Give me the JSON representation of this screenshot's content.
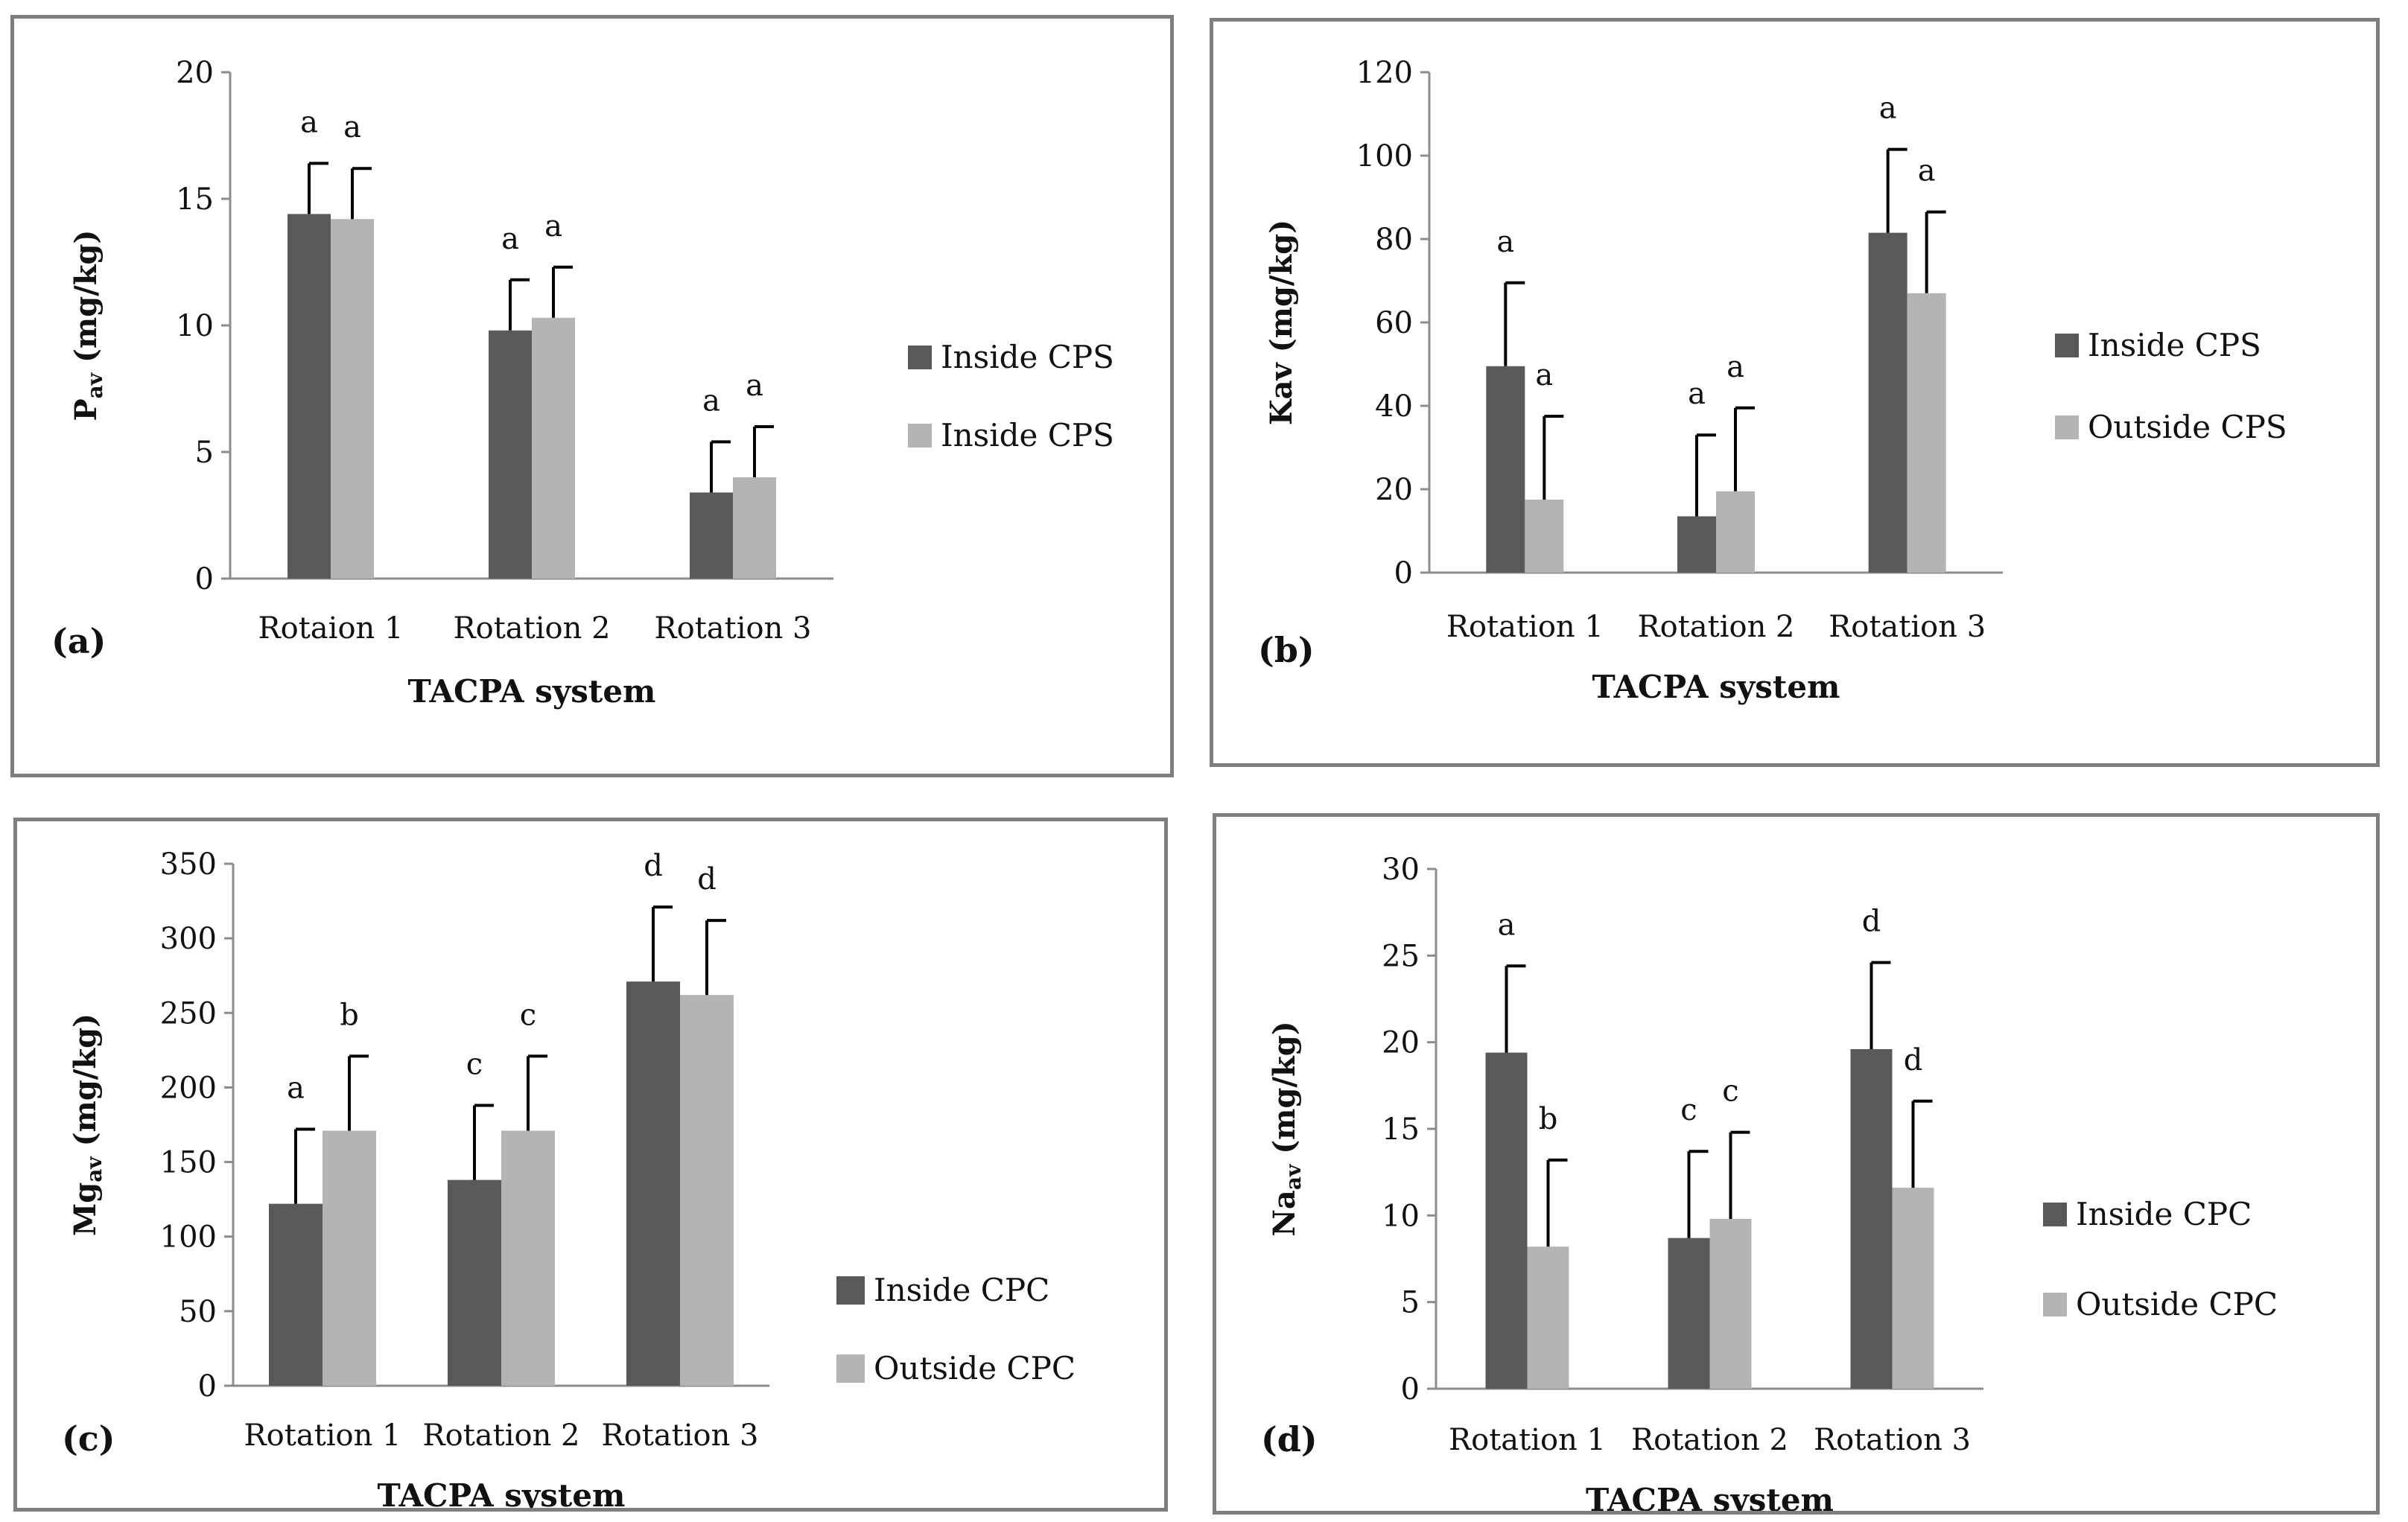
{
  "colors": {
    "inside": "#595959",
    "outside": "#b4b4b4",
    "axis": "#8c8c8c",
    "border": "#7f7f7f"
  },
  "chart_data": [
    {
      "type": "bar",
      "panel_label": "(a)",
      "xlabel": "TACPA system",
      "ylabel": "P",
      "ylabel_sub": "av",
      "ylabel_unit": " (mg/kg)",
      "ylim": [
        0,
        20
      ],
      "yticks": [
        0,
        5,
        10,
        15,
        20
      ],
      "categories": [
        "Rotaion 1",
        "Rotation 2",
        "Rotation 3"
      ],
      "series": [
        {
          "name": "Inside CPS",
          "values": [
            14.4,
            9.8,
            3.4
          ],
          "errors": [
            2.0,
            2.0,
            2.0
          ],
          "labels": [
            "a",
            "a",
            "a"
          ]
        },
        {
          "name": "Inside CPS",
          "values": [
            14.2,
            10.3,
            4.0
          ],
          "errors": [
            2.0,
            2.0,
            2.0
          ],
          "labels": [
            "a",
            "a",
            "a"
          ]
        }
      ]
    },
    {
      "type": "bar",
      "panel_label": "(b)",
      "xlabel": "TACPA system",
      "ylabel": "Kav (mg/kg)",
      "ylabel_sub": "",
      "ylabel_unit": "",
      "ylim": [
        0,
        120
      ],
      "yticks": [
        0,
        20,
        40,
        60,
        80,
        100,
        120
      ],
      "categories": [
        "Rotation 1",
        "Rotation 2",
        "Rotation 3"
      ],
      "series": [
        {
          "name": "Inside CPS",
          "values": [
            49.5,
            13.5,
            81.5
          ],
          "errors": [
            20.0,
            19.5,
            20.0
          ],
          "labels": [
            "a",
            "a",
            "a"
          ]
        },
        {
          "name": "Outside CPS",
          "values": [
            17.5,
            19.5,
            67.0
          ],
          "errors": [
            20.0,
            20.0,
            19.5
          ],
          "labels": [
            "a",
            "a",
            "a"
          ]
        }
      ]
    },
    {
      "type": "bar",
      "panel_label": "(c)",
      "xlabel": "TACPA system",
      "ylabel": "Mg",
      "ylabel_sub": "av",
      "ylabel_unit": " (mg/kg)",
      "ylim": [
        0,
        350
      ],
      "yticks": [
        0,
        50,
        100,
        150,
        200,
        250,
        300,
        350
      ],
      "categories": [
        "Rotation 1",
        "Rotation 2",
        "Rotation 3"
      ],
      "series": [
        {
          "name": "Inside CPC",
          "values": [
            122,
            138,
            271
          ],
          "errors": [
            50,
            50,
            50
          ],
          "labels": [
            "a",
            "c",
            "d"
          ]
        },
        {
          "name": "Outside CPC",
          "values": [
            171,
            171,
            262
          ],
          "errors": [
            50,
            50,
            50
          ],
          "labels": [
            "b",
            "c",
            "d"
          ]
        }
      ]
    },
    {
      "type": "bar",
      "panel_label": "(d)",
      "xlabel": "TACPA system",
      "ylabel": "Na",
      "ylabel_sub": "av",
      "ylabel_unit": " (mg/kg)",
      "ylim": [
        0,
        30
      ],
      "yticks": [
        0,
        5,
        10,
        15,
        20,
        25,
        30
      ],
      "categories": [
        "Rotation 1",
        "Rotation 2",
        "Rotation 3"
      ],
      "series": [
        {
          "name": "Inside CPC",
          "values": [
            19.4,
            8.7,
            19.6
          ],
          "errors": [
            5.0,
            5.0,
            5.0
          ],
          "labels": [
            "a",
            "c",
            "d"
          ]
        },
        {
          "name": "Outside CPC",
          "values": [
            8.2,
            9.8,
            11.6
          ],
          "errors": [
            5.0,
            5.0,
            5.0
          ],
          "labels": [
            "b",
            "c",
            "d"
          ]
        }
      ]
    }
  ]
}
